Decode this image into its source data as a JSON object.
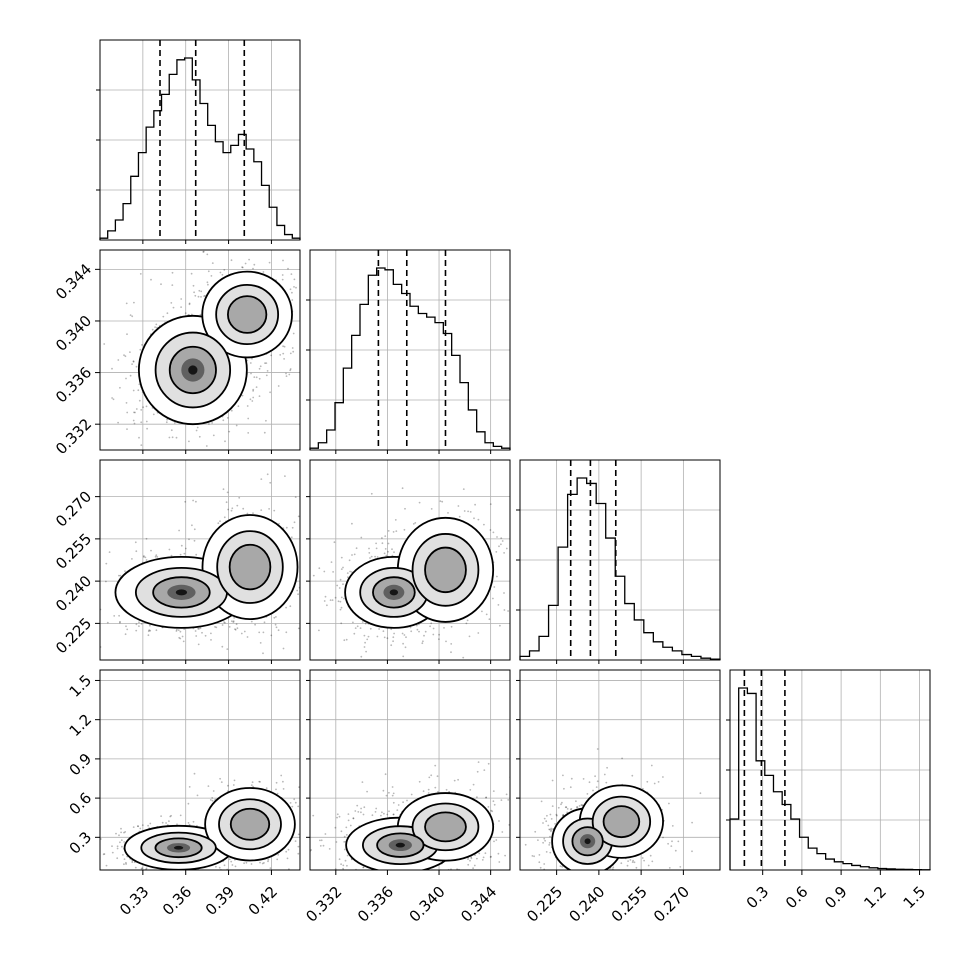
{
  "chart_data": {
    "type": "corner",
    "parameters": [
      {
        "index": 0,
        "range": [
          0.3,
          0.44
        ],
        "ticks": [
          0.33,
          0.36,
          0.39,
          0.42
        ],
        "tick_labels": [
          "0.33",
          "0.36",
          "0.39",
          "0.42"
        ],
        "quantiles": [
          0.342,
          0.367,
          0.401
        ]
      },
      {
        "index": 1,
        "range": [
          0.33,
          0.3455
        ],
        "ticks": [
          0.332,
          0.336,
          0.34,
          0.344
        ],
        "tick_labels": [
          "0.332",
          "0.336",
          "0.340",
          "0.344"
        ],
        "quantiles": [
          0.3353,
          0.3375,
          0.3405
        ]
      },
      {
        "index": 2,
        "range": [
          0.212,
          0.283
        ],
        "ticks": [
          0.225,
          0.24,
          0.255,
          0.27
        ],
        "tick_labels": [
          "0.225",
          "0.240",
          "0.255",
          "0.270"
        ],
        "quantiles": [
          0.23,
          0.237,
          0.246
        ]
      },
      {
        "index": 3,
        "range": [
          0.05,
          1.58
        ],
        "ticks": [
          0.3,
          0.6,
          0.9,
          1.2,
          1.5
        ],
        "tick_labels": [
          "0.3",
          "0.6",
          "0.9",
          "1.2",
          "1.5"
        ],
        "quantiles": [
          0.16,
          0.29,
          0.47
        ]
      }
    ],
    "histograms": [
      {
        "param": 0,
        "counts": [
          0.01,
          0.05,
          0.11,
          0.2,
          0.35,
          0.48,
          0.62,
          0.71,
          0.8,
          0.91,
          0.99,
          1.0,
          0.88,
          0.75,
          0.63,
          0.54,
          0.48,
          0.52,
          0.58,
          0.5,
          0.43,
          0.3,
          0.18,
          0.08,
          0.03,
          0.01
        ]
      },
      {
        "param": 1,
        "counts": [
          0.01,
          0.04,
          0.11,
          0.26,
          0.45,
          0.63,
          0.8,
          0.96,
          1.0,
          0.99,
          0.91,
          0.86,
          0.79,
          0.75,
          0.73,
          0.7,
          0.64,
          0.52,
          0.37,
          0.22,
          0.1,
          0.04,
          0.02,
          0.01
        ]
      },
      {
        "param": 2,
        "counts": [
          0.02,
          0.05,
          0.13,
          0.3,
          0.62,
          0.91,
          1.0,
          0.97,
          0.86,
          0.67,
          0.46,
          0.31,
          0.22,
          0.15,
          0.1,
          0.07,
          0.05,
          0.03,
          0.02,
          0.01,
          0.005
        ]
      },
      {
        "param": 3,
        "counts": [
          0.28,
          1.0,
          0.97,
          0.6,
          0.52,
          0.43,
          0.36,
          0.28,
          0.18,
          0.12,
          0.09,
          0.06,
          0.045,
          0.035,
          0.025,
          0.018,
          0.012,
          0.008,
          0.006,
          0.004,
          0.003,
          0.002,
          0.001
        ]
      }
    ],
    "pairs": [
      {
        "x": 0,
        "y": 1,
        "modes": [
          {
            "x": 0.365,
            "y": 0.3362,
            "sx": 0.018,
            "sy": 0.002,
            "w": 0.65
          },
          {
            "x": 0.403,
            "y": 0.3405,
            "sx": 0.017,
            "sy": 0.0018,
            "w": 0.35
          }
        ]
      },
      {
        "x": 0,
        "y": 2,
        "modes": [
          {
            "x": 0.357,
            "y": 0.236,
            "sx": 0.022,
            "sy": 0.006,
            "w": 0.68
          },
          {
            "x": 0.405,
            "y": 0.245,
            "sx": 0.018,
            "sy": 0.01,
            "w": 0.32
          }
        ]
      },
      {
        "x": 1,
        "y": 2,
        "modes": [
          {
            "x": 0.3365,
            "y": 0.236,
            "sx": 0.0018,
            "sy": 0.006,
            "w": 0.7
          },
          {
            "x": 0.3405,
            "y": 0.244,
            "sx": 0.002,
            "sy": 0.01,
            "w": 0.3
          }
        ]
      },
      {
        "x": 0,
        "y": 3,
        "modes": [
          {
            "x": 0.355,
            "y": 0.22,
            "sx": 0.018,
            "sy": 0.08,
            "w": 0.55
          },
          {
            "x": 0.405,
            "y": 0.4,
            "sx": 0.017,
            "sy": 0.15,
            "w": 0.45
          }
        ]
      },
      {
        "x": 1,
        "y": 3,
        "modes": [
          {
            "x": 0.337,
            "y": 0.24,
            "sx": 0.002,
            "sy": 0.1,
            "w": 0.65
          },
          {
            "x": 0.3405,
            "y": 0.38,
            "sx": 0.002,
            "sy": 0.14,
            "w": 0.35
          }
        ]
      },
      {
        "x": 2,
        "y": 3,
        "modes": [
          {
            "x": 0.236,
            "y": 0.27,
            "sx": 0.006,
            "sy": 0.12,
            "w": 0.75
          },
          {
            "x": 0.248,
            "y": 0.42,
            "sx": 0.008,
            "sy": 0.15,
            "w": 0.25
          }
        ]
      }
    ],
    "grid": true,
    "quantile_style": "dashed"
  }
}
